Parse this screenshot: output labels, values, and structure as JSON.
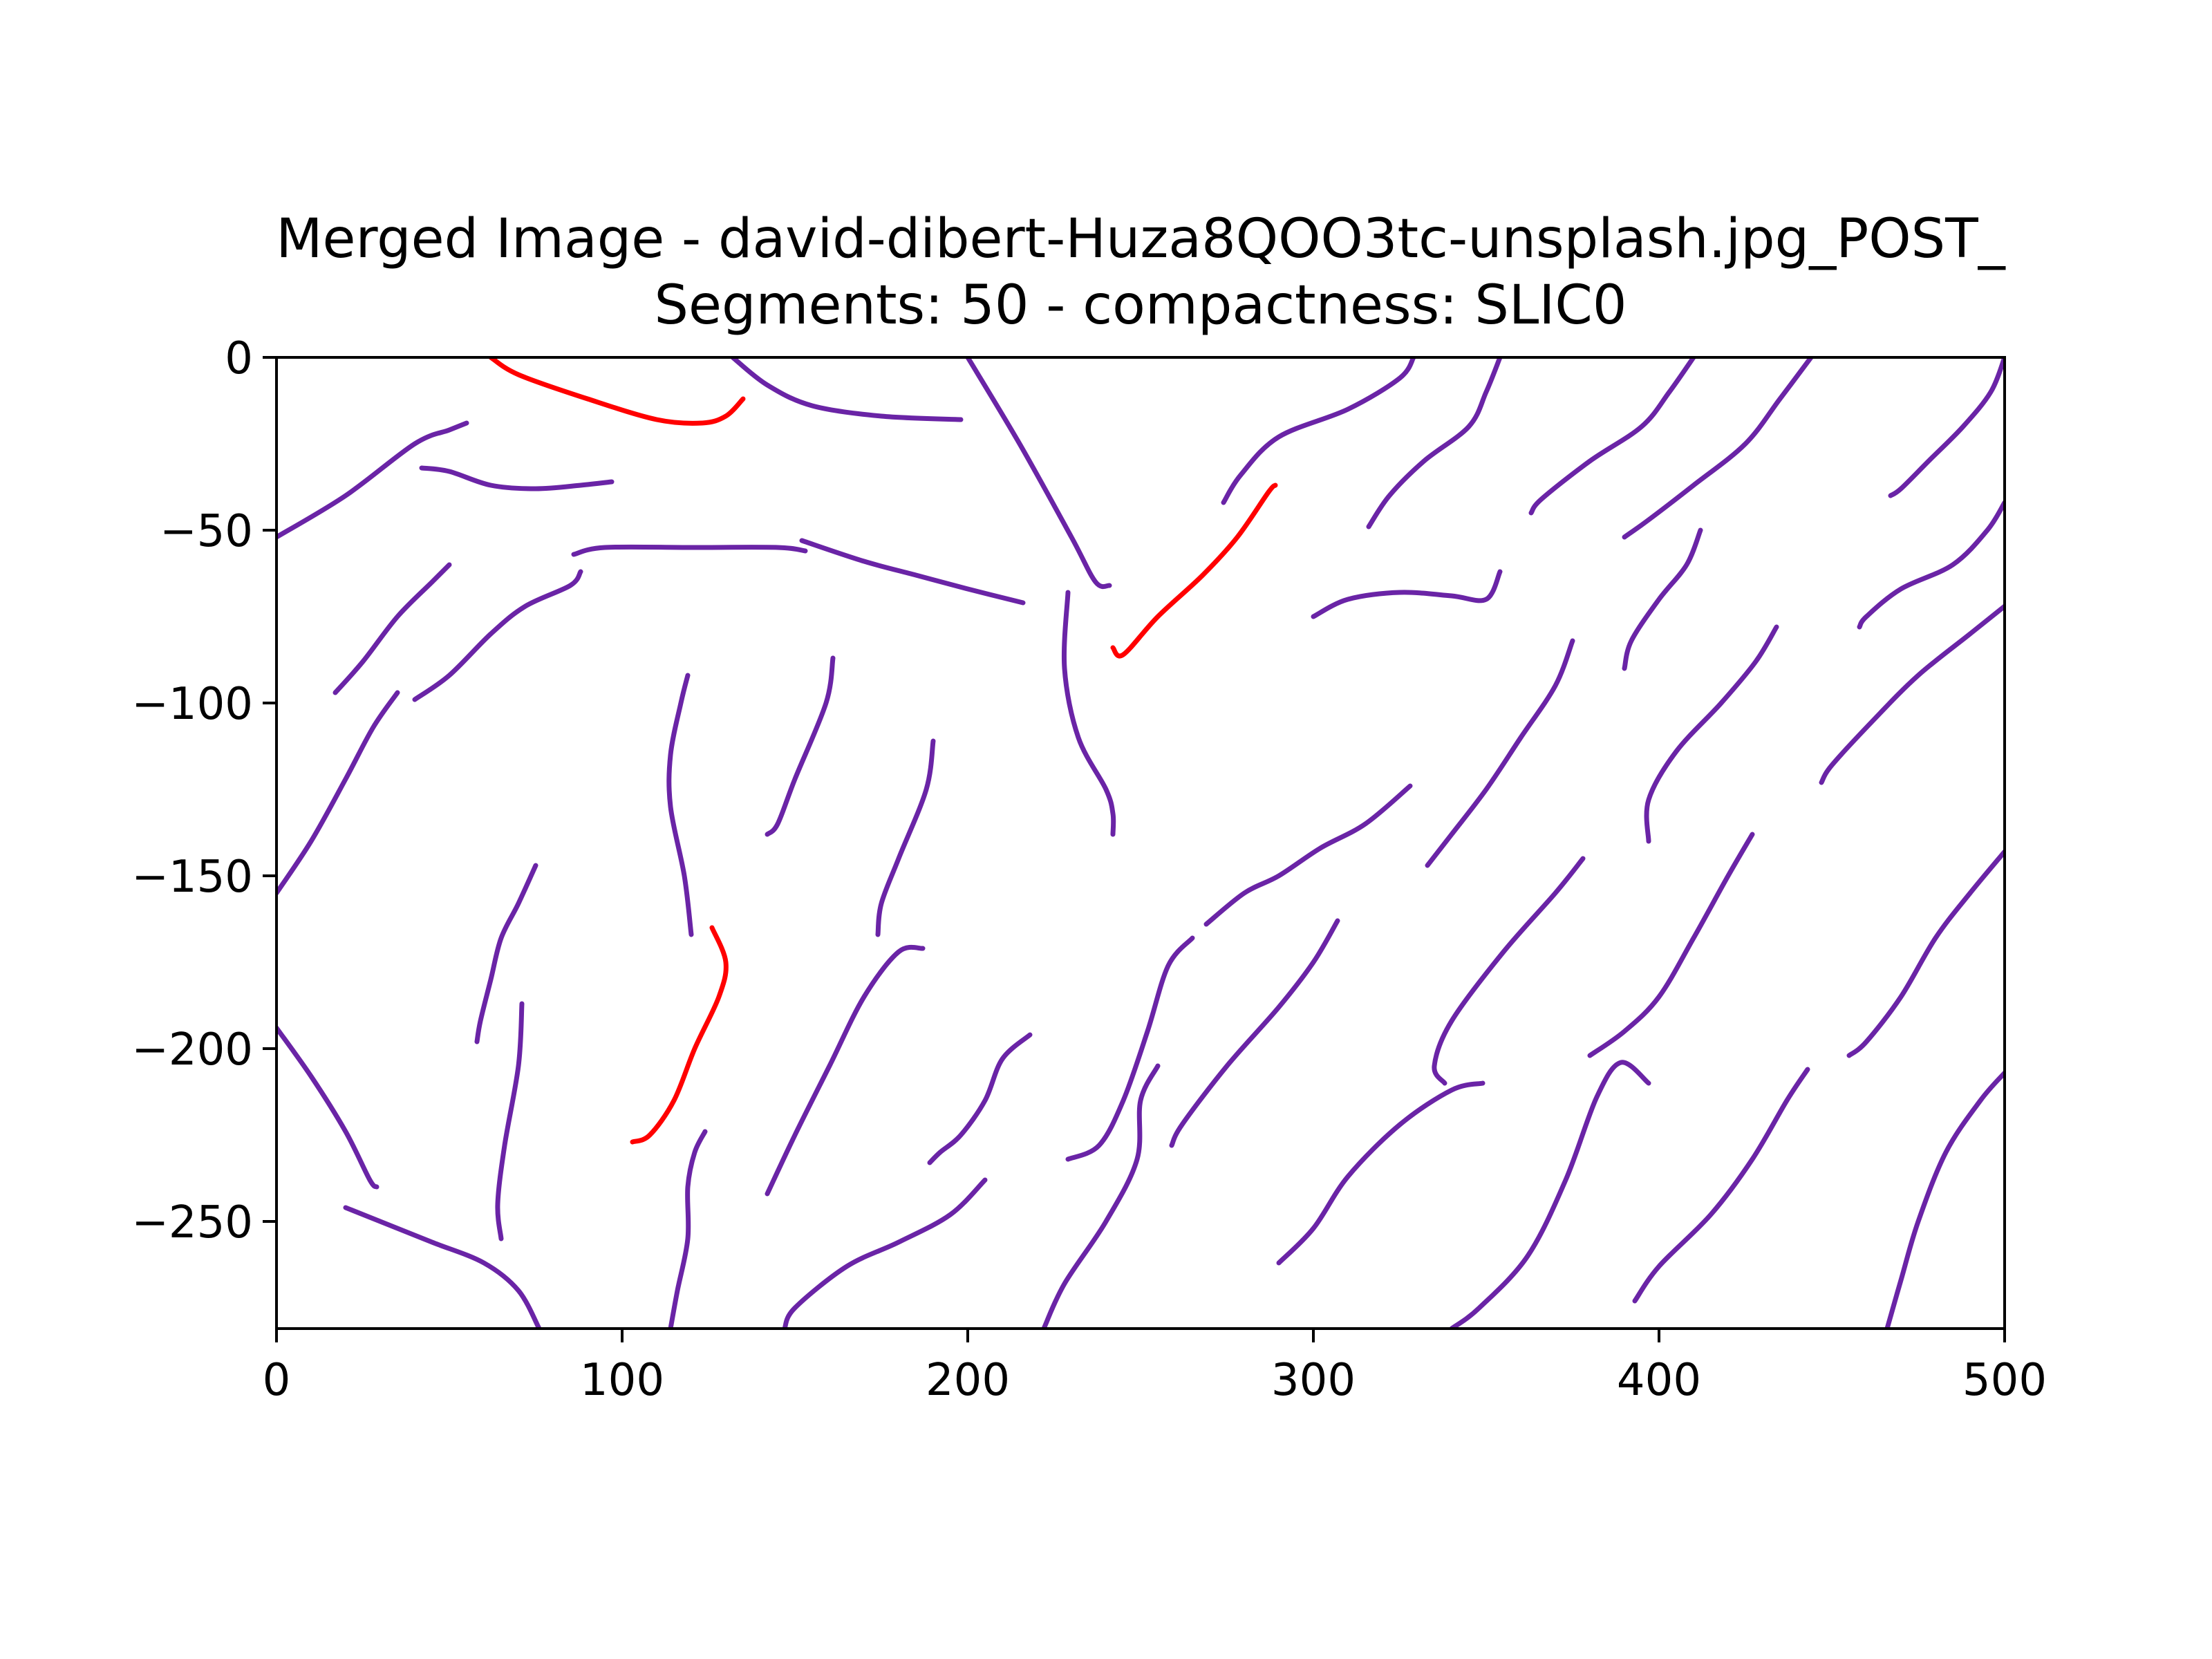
{
  "chart_data": {
    "type": "line",
    "title": "Merged Image - david-dibert-Huza8QOO3tc-unsplash.jpg_POST_",
    "subtitle": "Segments: 50 - compactness: SLIC0",
    "xlabel": "",
    "ylabel": "",
    "xlim": [
      0,
      500
    ],
    "ylim": [
      -281,
      0
    ],
    "x_ticks": [
      0,
      100,
      200,
      300,
      400,
      500
    ],
    "x_tick_labels": [
      "0",
      "100",
      "200",
      "300",
      "400",
      "500"
    ],
    "y_ticks": [
      0,
      -50,
      -100,
      -150,
      -200,
      -250
    ],
    "y_tick_labels": [
      "0",
      "−50",
      "−100",
      "−150",
      "−200",
      "−250"
    ],
    "grid": false,
    "legend": "none",
    "colors": {
      "boundary": "#6a24a6",
      "highlight": "#ff0000"
    },
    "series": [
      {
        "color": "#ff0000",
        "x": [
          62,
          70,
          90,
          110,
          123,
          130,
          135
        ],
        "y": [
          0,
          -5,
          -12,
          -18,
          -19,
          -17,
          -12
        ]
      },
      {
        "color": "#6a24a6",
        "x": [
          132,
          142,
          155,
          175,
          198
        ],
        "y": [
          0,
          -8,
          -14,
          -17,
          -18
        ]
      },
      {
        "color": "#6a24a6",
        "x": [
          0,
          20,
          40,
          50,
          55
        ],
        "y": [
          -52,
          -40,
          -25,
          -21,
          -19
        ]
      },
      {
        "color": "#6a24a6",
        "x": [
          42,
          50,
          62,
          75,
          88,
          97
        ],
        "y": [
          -32,
          -33,
          -37,
          -38,
          -37,
          -36
        ]
      },
      {
        "color": "#6a24a6",
        "x": [
          17,
          25,
          35,
          45,
          50
        ],
        "y": [
          -97,
          -88,
          -75,
          -65,
          -60
        ]
      },
      {
        "color": "#6a24a6",
        "x": [
          40,
          50,
          62,
          72,
          85,
          88
        ],
        "y": [
          -99,
          -92,
          -80,
          -72,
          -66,
          -62
        ]
      },
      {
        "color": "#6a24a6",
        "x": [
          86,
          95,
          120,
          145,
          153
        ],
        "y": [
          -57,
          -55,
          -55,
          -55,
          -56
        ]
      },
      {
        "color": "#6a24a6",
        "x": [
          152,
          170,
          185,
          200,
          216
        ],
        "y": [
          -53,
          -59,
          -63,
          -67,
          -71
        ]
      },
      {
        "color": "#6a24a6",
        "x": [
          200,
          215,
          230,
          237,
          241
        ],
        "y": [
          0,
          -25,
          -52,
          -65,
          -66
        ]
      },
      {
        "color": "#ff0000",
        "x": [
          242,
          245,
          255,
          268,
          278,
          287,
          289
        ],
        "y": [
          -84,
          -86,
          -75,
          -63,
          -52,
          -39,
          -37
        ]
      },
      {
        "color": "#6a24a6",
        "x": [
          229,
          228,
          232,
          240,
          242,
          242
        ],
        "y": [
          -68,
          -90,
          -110,
          -125,
          -132,
          -138
        ]
      },
      {
        "color": "#6a24a6",
        "x": [
          274,
          279,
          290,
          310,
          325,
          329
        ],
        "y": [
          -42,
          -34,
          -23,
          -15,
          -6,
          0
        ]
      },
      {
        "color": "#6a24a6",
        "x": [
          316,
          322,
          332,
          345,
          350,
          354
        ],
        "y": [
          -49,
          -40,
          -30,
          -20,
          -10,
          0
        ]
      },
      {
        "color": "#6a24a6",
        "x": [
          410,
          403,
          395,
          380,
          366,
          363
        ],
        "y": [
          0,
          -10,
          -20,
          -30,
          -41,
          -45
        ]
      },
      {
        "color": "#6a24a6",
        "x": [
          444,
          435,
          425,
          410,
          397,
          390
        ],
        "y": [
          0,
          -12,
          -25,
          -37,
          -47,
          -52
        ]
      },
      {
        "color": "#6a24a6",
        "x": [
          500,
          496,
          488,
          478,
          470,
          467
        ],
        "y": [
          0,
          -10,
          -20,
          -30,
          -38,
          -40
        ]
      },
      {
        "color": "#6a24a6",
        "x": [
          300,
          310,
          325,
          340,
          350,
          354
        ],
        "y": [
          -75,
          -70,
          -68,
          -69,
          -70,
          -62
        ]
      },
      {
        "color": "#6a24a6",
        "x": [
          412,
          408,
          400,
          392,
          390
        ],
        "y": [
          -50,
          -60,
          -70,
          -82,
          -90
        ]
      },
      {
        "color": "#6a24a6",
        "x": [
          500,
          495,
          485,
          470,
          460,
          458
        ],
        "y": [
          -42,
          -50,
          -60,
          -67,
          -75,
          -78
        ]
      },
      {
        "color": "#6a24a6",
        "x": [
          500,
          490,
          475,
          462,
          450,
          447
        ],
        "y": [
          -72,
          -80,
          -92,
          -105,
          -118,
          -123
        ]
      },
      {
        "color": "#6a24a6",
        "x": [
          375,
          370,
          360,
          350,
          340,
          333
        ],
        "y": [
          -82,
          -95,
          -110,
          -125,
          -138,
          -147
        ]
      },
      {
        "color": "#6a24a6",
        "x": [
          434,
          428,
          418,
          405,
          397,
          397
        ],
        "y": [
          -78,
          -88,
          -100,
          -114,
          -128,
          -140
        ]
      },
      {
        "color": "#6a24a6",
        "x": [
          0,
          10,
          20,
          28,
          35
        ],
        "y": [
          -155,
          -140,
          -122,
          -107,
          -97
        ]
      },
      {
        "color": "#6a24a6",
        "x": [
          119,
          117,
          114,
          114,
          118,
          120
        ],
        "y": [
          -92,
          -100,
          -115,
          -130,
          -150,
          -167
        ]
      },
      {
        "color": "#ff0000",
        "x": [
          126,
          130,
          128,
          121,
          115,
          108,
          103
        ],
        "y": [
          -165,
          -175,
          -185,
          -200,
          -215,
          -225,
          -227
        ]
      },
      {
        "color": "#6a24a6",
        "x": [
          161,
          159,
          150,
          145,
          142
        ],
        "y": [
          -87,
          -100,
          -122,
          -135,
          -138
        ]
      },
      {
        "color": "#6a24a6",
        "x": [
          190,
          188,
          180,
          175,
          174
        ],
        "y": [
          -111,
          -125,
          -145,
          -158,
          -167
        ]
      },
      {
        "color": "#6a24a6",
        "x": [
          75,
          70,
          65,
          62,
          59,
          58
        ],
        "y": [
          -147,
          -158,
          -168,
          -180,
          -192,
          -198
        ]
      },
      {
        "color": "#6a24a6",
        "x": [
          71,
          70,
          66,
          64,
          65
        ],
        "y": [
          -187,
          -205,
          -228,
          -245,
          -255
        ]
      },
      {
        "color": "#6a24a6",
        "x": [
          0,
          10,
          20,
          27,
          29
        ],
        "y": [
          -194,
          -208,
          -224,
          -238,
          -240
        ]
      },
      {
        "color": "#6a24a6",
        "x": [
          20,
          30,
          45,
          60,
          70,
          76
        ],
        "y": [
          -246,
          -250,
          -256,
          -262,
          -270,
          -281
        ]
      },
      {
        "color": "#6a24a6",
        "x": [
          124,
          121,
          119,
          119,
          116,
          114
        ],
        "y": [
          -224,
          -230,
          -240,
          -255,
          -270,
          -281
        ]
      },
      {
        "color": "#6a24a6",
        "x": [
          187,
          180,
          170,
          160,
          150,
          142
        ],
        "y": [
          -171,
          -172,
          -185,
          -205,
          -225,
          -242
        ]
      },
      {
        "color": "#6a24a6",
        "x": [
          218,
          210,
          205,
          198,
          192,
          189
        ],
        "y": [
          -196,
          -203,
          -215,
          -225,
          -230,
          -233
        ]
      },
      {
        "color": "#6a24a6",
        "x": [
          205,
          195,
          180,
          165,
          150,
          147
        ],
        "y": [
          -238,
          -248,
          -256,
          -263,
          -275,
          -281
        ]
      },
      {
        "color": "#6a24a6",
        "x": [
          265,
          258,
          252,
          245,
          238,
          229
        ],
        "y": [
          -168,
          -176,
          -195,
          -215,
          -228,
          -232
        ]
      },
      {
        "color": "#6a24a6",
        "x": [
          255,
          250,
          249,
          240,
          228,
          222
        ],
        "y": [
          -205,
          -215,
          -232,
          -250,
          -268,
          -281
        ]
      },
      {
        "color": "#6a24a6",
        "x": [
          328,
          315,
          302,
          290,
          280,
          269
        ],
        "y": [
          -124,
          -135,
          -142,
          -150,
          -155,
          -164
        ]
      },
      {
        "color": "#6a24a6",
        "x": [
          307,
          300,
          290,
          275,
          262,
          259
        ],
        "y": [
          -163,
          -175,
          -188,
          -205,
          -222,
          -228
        ]
      },
      {
        "color": "#6a24a6",
        "x": [
          378,
          370,
          355,
          340,
          335,
          338
        ],
        "y": [
          -145,
          -155,
          -172,
          -192,
          -205,
          -210
        ]
      },
      {
        "color": "#6a24a6",
        "x": [
          349,
          340,
          325,
          310,
          300,
          290
        ],
        "y": [
          -210,
          -212,
          -222,
          -237,
          -252,
          -262
        ]
      },
      {
        "color": "#6a24a6",
        "x": [
          427,
          420,
          410,
          400,
          390,
          380
        ],
        "y": [
          -138,
          -150,
          -168,
          -185,
          -195,
          -202
        ]
      },
      {
        "color": "#6a24a6",
        "x": [
          397,
          389,
          382,
          373,
          362,
          348,
          340
        ],
        "y": [
          -210,
          -204,
          -214,
          -238,
          -260,
          -275,
          -281
        ]
      },
      {
        "color": "#6a24a6",
        "x": [
          500,
          490,
          480,
          470,
          460,
          455
        ],
        "y": [
          -143,
          -155,
          -168,
          -185,
          -198,
          -202
        ]
      },
      {
        "color": "#6a24a6",
        "x": [
          443,
          437,
          427,
          415,
          400,
          393
        ],
        "y": [
          -206,
          -215,
          -232,
          -248,
          -263,
          -273
        ]
      },
      {
        "color": "#6a24a6",
        "x": [
          500,
          493,
          483,
          475,
          470,
          466
        ],
        "y": [
          -207,
          -215,
          -230,
          -250,
          -267,
          -281
        ]
      }
    ]
  }
}
